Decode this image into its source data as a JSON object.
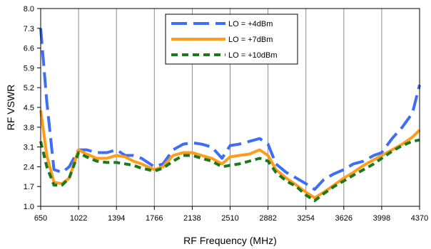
{
  "chart_data": {
    "type": "line",
    "xlabel": "RF Frequency (MHz)",
    "ylabel": "RF VSWR",
    "xlim": [
      650,
      4370
    ],
    "ylim": [
      1.0,
      8.0
    ],
    "xticks": [
      650,
      1022,
      1394,
      1766,
      2138,
      2510,
      2882,
      3254,
      3626,
      3998,
      4370
    ],
    "yticks": [
      "1.0",
      "1.7",
      "2.4",
      "3.1",
      "3.8",
      "4.5",
      "5.2",
      "5.9",
      "6.6",
      "7.3",
      "8.0"
    ],
    "grid": "vertical",
    "legend_position": "top-center",
    "series": [
      {
        "name": "LO = +4dBm",
        "color": "#3d6ef5",
        "style": "long-dash",
        "x": [
          650,
          710,
          780,
          860,
          930,
          1022,
          1100,
          1200,
          1300,
          1394,
          1480,
          1560,
          1640,
          1766,
          1850,
          1950,
          2050,
          2138,
          2230,
          2330,
          2430,
          2510,
          2600,
          2700,
          2800,
          2882,
          2960,
          3060,
          3160,
          3254,
          3340,
          3430,
          3530,
          3626,
          3720,
          3820,
          3920,
          3998,
          4100,
          4200,
          4300,
          4370
        ],
        "y": [
          7.3,
          4.7,
          2.3,
          2.2,
          2.4,
          3.0,
          3.0,
          2.9,
          2.9,
          3.0,
          2.8,
          2.8,
          2.7,
          2.4,
          2.5,
          3.0,
          3.2,
          3.25,
          3.2,
          3.1,
          2.7,
          3.15,
          3.2,
          3.3,
          3.4,
          3.2,
          2.5,
          2.2,
          2.0,
          1.8,
          1.6,
          1.95,
          2.15,
          2.3,
          2.5,
          2.6,
          2.8,
          2.9,
          3.4,
          3.8,
          4.3,
          5.3
        ]
      },
      {
        "name": "LO = +7dBm",
        "color": "#ff9c1a",
        "style": "solid",
        "x": [
          650,
          710,
          780,
          860,
          930,
          1022,
          1100,
          1200,
          1300,
          1394,
          1480,
          1560,
          1640,
          1766,
          1850,
          1950,
          2050,
          2138,
          2230,
          2330,
          2430,
          2510,
          2600,
          2700,
          2800,
          2882,
          2960,
          3060,
          3160,
          3254,
          3340,
          3430,
          3530,
          3626,
          3720,
          3820,
          3920,
          3998,
          4100,
          4200,
          4300,
          4370
        ],
        "y": [
          4.4,
          2.8,
          1.85,
          1.8,
          2.0,
          3.0,
          2.85,
          2.7,
          2.7,
          2.8,
          2.75,
          2.6,
          2.5,
          2.3,
          2.4,
          2.8,
          2.9,
          2.9,
          2.8,
          2.7,
          2.5,
          2.75,
          2.8,
          2.85,
          3.0,
          2.8,
          2.3,
          2.0,
          1.75,
          1.5,
          1.3,
          1.5,
          1.75,
          2.0,
          2.2,
          2.45,
          2.65,
          2.8,
          3.0,
          3.2,
          3.45,
          3.7
        ]
      },
      {
        "name": "LO = +10dBm",
        "color": "#1a7a1a",
        "style": "short-dash",
        "x": [
          650,
          710,
          780,
          860,
          930,
          1022,
          1100,
          1200,
          1300,
          1394,
          1480,
          1560,
          1640,
          1766,
          1850,
          1950,
          2050,
          2138,
          2230,
          2330,
          2430,
          2510,
          2600,
          2700,
          2800,
          2882,
          2960,
          3060,
          3160,
          3254,
          3340,
          3430,
          3530,
          3626,
          3720,
          3820,
          3920,
          3998,
          4100,
          4200,
          4300,
          4370
        ],
        "y": [
          3.3,
          2.4,
          1.75,
          1.75,
          2.0,
          2.9,
          2.75,
          2.6,
          2.55,
          2.55,
          2.5,
          2.45,
          2.35,
          2.25,
          2.35,
          2.6,
          2.8,
          2.8,
          2.7,
          2.6,
          2.4,
          2.45,
          2.5,
          2.6,
          2.7,
          2.6,
          2.2,
          1.9,
          1.7,
          1.4,
          1.2,
          1.45,
          1.7,
          1.9,
          2.1,
          2.3,
          2.5,
          2.7,
          2.95,
          3.15,
          3.3,
          3.35
        ]
      }
    ]
  }
}
